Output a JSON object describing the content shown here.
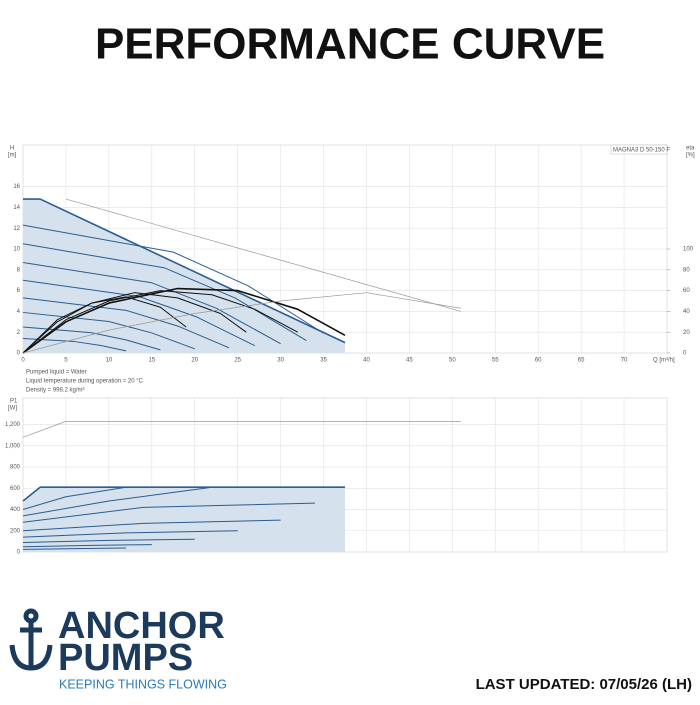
{
  "header": {
    "title": "PERFORMANCE CURVE"
  },
  "footer": {
    "brand_line1": "ANCHOR",
    "brand_line2": "PUMPS",
    "tagline": "KEEPING THINGS FLOWING",
    "updated": "LAST UPDATED: 07/05/26 (LH)"
  },
  "chart_data": [
    {
      "type": "line",
      "ylabel": "H",
      "yunit": "[m]",
      "y2label": "eta",
      "y2unit": "[%]",
      "xlabel": "Q [m³/h]",
      "annotation": "MAGNA3 D 50-150 F",
      "notes": [
        "Pumped liquid = Water",
        "Liquid temperature during operation = 20 °C",
        "Density = 998.2 kg/m³"
      ],
      "grid": true,
      "show_xtick_labels": true,
      "xlim": [
        0,
        75
      ],
      "xticks": [
        0,
        5,
        10,
        15,
        20,
        25,
        30,
        35,
        40,
        45,
        50,
        55,
        60,
        65,
        70
      ],
      "ylim": [
        0,
        20
      ],
      "yticks": [
        0,
        2,
        4,
        6,
        8,
        10,
        12,
        14,
        16
      ],
      "y2lim": [
        0,
        200
      ],
      "y2ticks": [
        0,
        20,
        40,
        60,
        80,
        100
      ],
      "series": [
        {
          "color": "#2a5d91",
          "width": 1.6,
          "fill": "#d5e1ec",
          "x": [
            0,
            2,
            37.5
          ],
          "values": [
            14.8,
            14.8,
            1.0
          ]
        },
        {
          "color": "#2a5d91",
          "width": 1,
          "x": [
            0,
            17.5,
            26.25,
            35
          ],
          "values": [
            12.3,
            9.7,
            6.45,
            1.9
          ]
        },
        {
          "color": "#2a5d91",
          "width": 1,
          "x": [
            0,
            16.5,
            24.75,
            33
          ],
          "values": [
            10.5,
            8.18,
            5.27,
            1.2
          ]
        },
        {
          "color": "#2a5d91",
          "width": 1,
          "x": [
            0,
            15,
            22.5,
            30
          ],
          "values": [
            8.7,
            6.75,
            4.31,
            0.9
          ]
        },
        {
          "color": "#2a5d91",
          "width": 1,
          "x": [
            0,
            13.5,
            20.25,
            27
          ],
          "values": [
            7.0,
            5.43,
            3.46,
            0.7
          ]
        },
        {
          "color": "#2a5d91",
          "width": 1,
          "x": [
            0,
            12,
            18,
            24
          ],
          "values": [
            5.3,
            4.1,
            2.6,
            0.5
          ]
        },
        {
          "color": "#2a5d91",
          "width": 1,
          "x": [
            0,
            10,
            15,
            20
          ],
          "values": [
            3.9,
            3.03,
            1.93,
            0.4
          ]
        },
        {
          "color": "#2a5d91",
          "width": 1,
          "x": [
            0,
            8,
            12,
            16
          ],
          "values": [
            2.5,
            1.95,
            1.26,
            0.3
          ]
        },
        {
          "color": "#2a5d91",
          "width": 1,
          "x": [
            0,
            6,
            9,
            12
          ],
          "values": [
            1.4,
            1.1,
            0.73,
            0.2
          ]
        },
        {
          "color": "#111111",
          "width": 1.6,
          "axis": "y2",
          "x": [
            0,
            5,
            10,
            18,
            25,
            32,
            37.5
          ],
          "values": [
            0,
            30,
            48,
            62,
            60,
            42,
            17
          ]
        },
        {
          "color": "#111111",
          "width": 1,
          "axis": "y2",
          "x": [
            0,
            5,
            10,
            16,
            22,
            27,
            32
          ],
          "values": [
            0,
            32,
            50,
            60,
            56,
            42,
            20
          ]
        },
        {
          "color": "#111111",
          "width": 1,
          "axis": "y2",
          "x": [
            0,
            4,
            8,
            13,
            18,
            23,
            26
          ],
          "values": [
            0,
            30,
            48,
            58,
            53,
            38,
            20
          ]
        },
        {
          "color": "#111111",
          "width": 1,
          "axis": "y2",
          "x": [
            0,
            4,
            8,
            12,
            16,
            19
          ],
          "values": [
            0,
            32,
            48,
            54,
            44,
            25
          ]
        },
        {
          "color": "#999999",
          "width": 0.7,
          "axis": "y2",
          "x": [
            0,
            10,
            20,
            30,
            40,
            51
          ],
          "values": [
            0,
            22,
            38,
            50,
            58,
            43
          ]
        },
        {
          "color": "#999999",
          "width": 0.7,
          "x": [
            5,
            51
          ],
          "values": [
            14.8,
            4.0
          ]
        }
      ]
    },
    {
      "type": "line",
      "ylabel": "P1",
      "yunit": "[W]",
      "grid": true,
      "show_xtick_labels": false,
      "xlim": [
        0,
        75
      ],
      "xticks": [
        0,
        5,
        10,
        15,
        20,
        25,
        30,
        35,
        40,
        45,
        50,
        55,
        60,
        65,
        70
      ],
      "ylim": [
        0,
        1450
      ],
      "yticks": [
        0,
        200,
        400,
        600,
        800,
        {
          "value": 1000,
          "label": "1,000"
        },
        {
          "value": 1200,
          "label": "1,200"
        }
      ],
      "series": [
        {
          "color": "#2a5d91",
          "width": 1.6,
          "fill": "#d5e1ec",
          "x": [
            0,
            2,
            37.5
          ],
          "values": [
            480,
            610,
            610
          ]
        },
        {
          "color": "#2a5d91",
          "width": 1,
          "x": [
            0,
            5,
            12
          ],
          "values": [
            400,
            520,
            610
          ]
        },
        {
          "color": "#2a5d91",
          "width": 1,
          "x": [
            0,
            10,
            22
          ],
          "values": [
            340,
            480,
            610
          ]
        },
        {
          "color": "#2a5d91",
          "width": 1,
          "x": [
            0,
            14,
            34
          ],
          "values": [
            280,
            420,
            460
          ]
        },
        {
          "color": "#2a5d91",
          "width": 1,
          "x": [
            0,
            14,
            30
          ],
          "values": [
            200,
            270,
            300
          ]
        },
        {
          "color": "#2a5d91",
          "width": 1,
          "x": [
            0,
            12,
            25
          ],
          "values": [
            140,
            180,
            200
          ]
        },
        {
          "color": "#2a5d91",
          "width": 1,
          "x": [
            0,
            10,
            20
          ],
          "values": [
            90,
            110,
            120
          ]
        },
        {
          "color": "#2a5d91",
          "width": 1,
          "x": [
            0,
            8,
            15
          ],
          "values": [
            50,
            62,
            70
          ]
        },
        {
          "color": "#2a5d91",
          "width": 1,
          "x": [
            0,
            6,
            12
          ],
          "values": [
            25,
            32,
            38
          ]
        },
        {
          "color": "#999999",
          "width": 0.7,
          "x": [
            0,
            5,
            51
          ],
          "values": [
            1080,
            1230,
            1230
          ]
        }
      ]
    }
  ]
}
